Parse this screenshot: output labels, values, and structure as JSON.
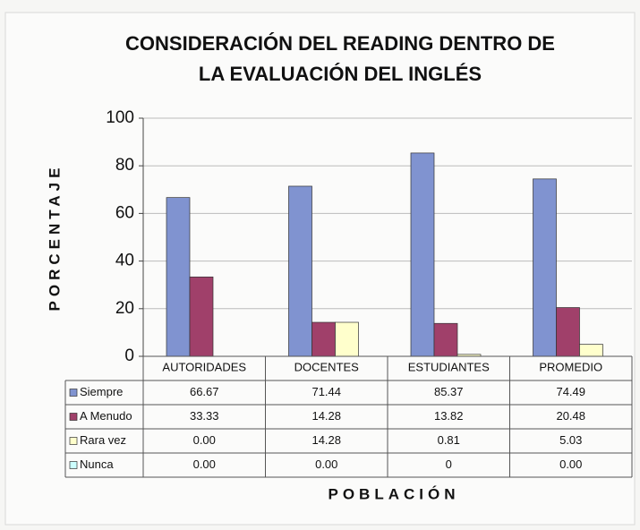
{
  "chart_data": {
    "type": "bar",
    "title": [
      "CONSIDERACIÓN DEL READING DENTRO DE",
      "LA EVALUACIÓN DEL INGLÉS"
    ],
    "ylabel": "PORCENTAJE",
    "xlabel": "POBLACIÓN",
    "categories": [
      "AUTORIDADES",
      "DOCENTES",
      "ESTUDIANTES",
      "PROMEDIO"
    ],
    "series": [
      {
        "name": "Siempre",
        "color": "#8093d0",
        "values": [
          66.67,
          71.44,
          85.37,
          74.49
        ],
        "value_labels": [
          "66.67",
          "71.44",
          "85.37",
          "74.49"
        ]
      },
      {
        "name": "A Menudo",
        "color": "#a0406a",
        "values": [
          33.33,
          14.28,
          13.82,
          20.48
        ],
        "value_labels": [
          "33.33",
          "14.28",
          "13.82",
          "20.48"
        ]
      },
      {
        "name": "Rara vez",
        "color": "#ffffcc",
        "values": [
          0,
          14.28,
          0.81,
          5.03
        ],
        "value_labels": [
          "0.00",
          "14.28",
          "0.81",
          "5.03"
        ]
      },
      {
        "name": "Nunca",
        "color": "#ccffff",
        "values": [
          0,
          0,
          0,
          0
        ],
        "value_labels": [
          "0.00",
          "0.00",
          "0",
          "0.00"
        ]
      }
    ],
    "ylim": [
      0,
      100
    ],
    "yticks": [
      0,
      20,
      40,
      60,
      80,
      100
    ],
    "grid": true,
    "data_table": true
  }
}
